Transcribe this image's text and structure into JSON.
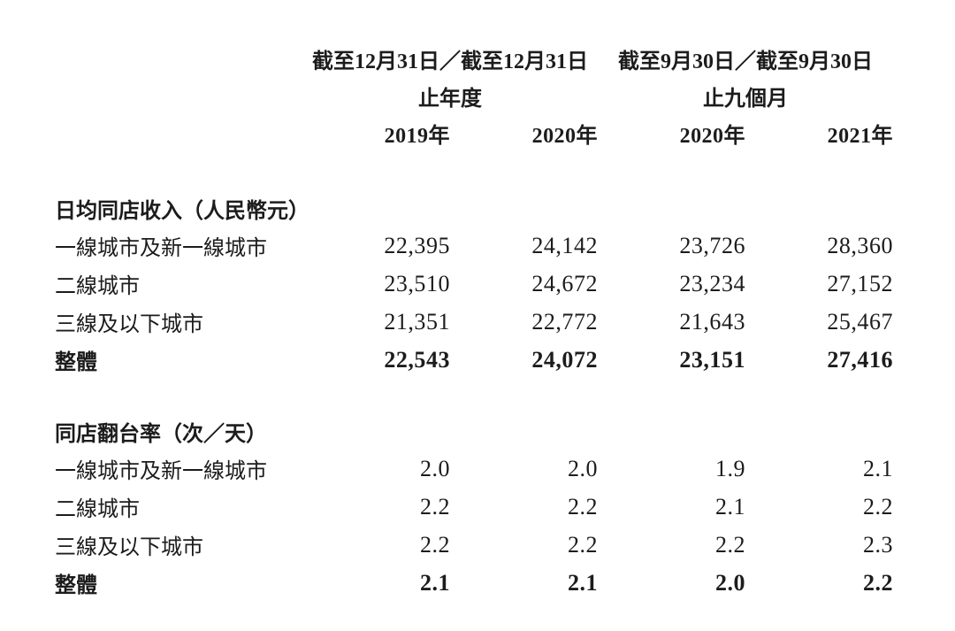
{
  "header": {
    "groups": [
      {
        "period": "截至12月31日／截至12月31日",
        "duration": "止年度",
        "years": [
          "2019年",
          "2020年"
        ]
      },
      {
        "period": "截至9月30日／截至9月30日",
        "duration": "止九個月",
        "years": [
          "2020年",
          "2021年"
        ]
      }
    ]
  },
  "sections": [
    {
      "title": "日均同店收入（人民幣元）",
      "rows": [
        {
          "label": "一線城市及新一線城市",
          "values": [
            "22,395",
            "24,142",
            "23,726",
            "28,360"
          ]
        },
        {
          "label": "二線城市",
          "values": [
            "23,510",
            "24,672",
            "23,234",
            "27,152"
          ]
        },
        {
          "label": "三線及以下城市",
          "values": [
            "21,351",
            "22,772",
            "21,643",
            "25,467"
          ]
        },
        {
          "label": "整體",
          "values": [
            "22,543",
            "24,072",
            "23,151",
            "27,416"
          ]
        }
      ]
    },
    {
      "title": "同店翻台率（次／天）",
      "rows": [
        {
          "label": "一線城市及新一線城市",
          "values": [
            "2.0",
            "2.0",
            "1.9",
            "2.1"
          ]
        },
        {
          "label": "二線城市",
          "values": [
            "2.2",
            "2.2",
            "2.1",
            "2.2"
          ]
        },
        {
          "label": "三線及以下城市",
          "values": [
            "2.2",
            "2.2",
            "2.2",
            "2.3"
          ]
        },
        {
          "label": "整體",
          "values": [
            "2.1",
            "2.1",
            "2.0",
            "2.2"
          ]
        }
      ]
    }
  ],
  "colors": {
    "text": "#1c1c1c",
    "background": "#ffffff"
  }
}
